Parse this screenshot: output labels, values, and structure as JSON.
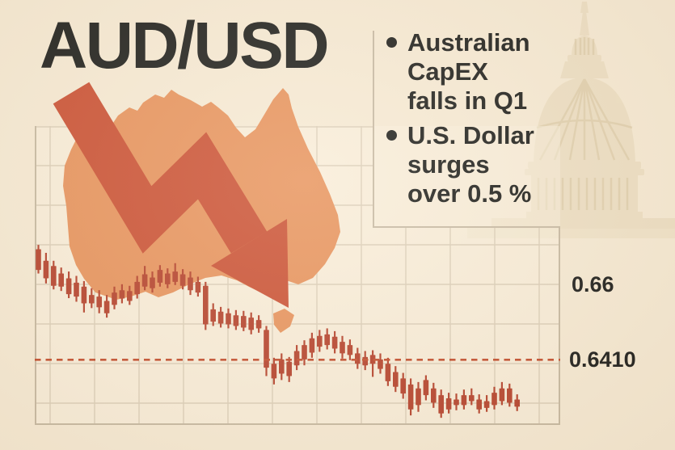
{
  "title": "AUD/USD",
  "bullets": [
    {
      "text": "Australian CapEX falls in Q1"
    },
    {
      "text": "U.S. Dollar surges over 0.5 %"
    }
  ],
  "icons": {
    "map": "australia-map",
    "arrow": "downtrend-arrow",
    "watermark": "us-capitol-dome"
  },
  "colors": {
    "background": "#f7ead3",
    "text": "#23231f",
    "map_orange": "#e8955e",
    "arrow_red": "#cc5436",
    "candle_red": "#b7452e",
    "dashed_line": "#c4502f",
    "grid_line": "#ddcfb8",
    "frame_line": "#c8baa2",
    "panel_border": "#c9bba4",
    "watermark_beige": "#e7d6b4"
  },
  "chart_data": {
    "type": "candlestick",
    "title": "AUD/USD exchange rate",
    "xlabel": "",
    "ylabel": "",
    "grid": true,
    "legend": false,
    "ylim": [
      0.6246,
      0.6998
    ],
    "price_labels": [
      {
        "text": "0.66",
        "value": 0.66
      },
      {
        "text": "0.6410",
        "value": 0.641
      }
    ],
    "reference_line": {
      "value": 0.641,
      "style": "dashed"
    },
    "candle_format": [
      "high",
      "body_top",
      "body_bottom",
      "low"
    ],
    "candles": [
      [
        0.6699,
        0.6688,
        0.6636,
        0.6627
      ],
      [
        0.6679,
        0.6659,
        0.6615,
        0.6602
      ],
      [
        0.6659,
        0.6646,
        0.6596,
        0.6587
      ],
      [
        0.6642,
        0.6627,
        0.6594,
        0.6583
      ],
      [
        0.6632,
        0.6615,
        0.6575,
        0.6565
      ],
      [
        0.6621,
        0.6604,
        0.6569,
        0.6556
      ],
      [
        0.6608,
        0.6594,
        0.6552,
        0.6529
      ],
      [
        0.659,
        0.6573,
        0.6552,
        0.654
      ],
      [
        0.6585,
        0.6569,
        0.6542,
        0.6527
      ],
      [
        0.6573,
        0.6558,
        0.6527,
        0.6516
      ],
      [
        0.6594,
        0.6579,
        0.6548,
        0.6537
      ],
      [
        0.66,
        0.6585,
        0.6564,
        0.6552
      ],
      [
        0.6596,
        0.6583,
        0.6558,
        0.6548
      ],
      [
        0.6621,
        0.6606,
        0.6575,
        0.6564
      ],
      [
        0.6646,
        0.6625,
        0.6594,
        0.6585
      ],
      [
        0.6632,
        0.6617,
        0.659,
        0.6579
      ],
      [
        0.6648,
        0.6636,
        0.6604,
        0.6594
      ],
      [
        0.664,
        0.6627,
        0.66,
        0.659
      ],
      [
        0.6653,
        0.6632,
        0.6606,
        0.6598
      ],
      [
        0.6638,
        0.6625,
        0.6596,
        0.6587
      ],
      [
        0.6632,
        0.6617,
        0.6585,
        0.6573
      ],
      [
        0.6619,
        0.6606,
        0.6579,
        0.6569
      ],
      [
        0.6606,
        0.6596,
        0.6499,
        0.6485
      ],
      [
        0.6552,
        0.6537,
        0.6506,
        0.6495
      ],
      [
        0.6543,
        0.6531,
        0.6501,
        0.6491
      ],
      [
        0.6539,
        0.6527,
        0.6499,
        0.6489
      ],
      [
        0.6535,
        0.6522,
        0.6495,
        0.6485
      ],
      [
        0.6533,
        0.652,
        0.6491,
        0.6482
      ],
      [
        0.6529,
        0.6516,
        0.6485,
        0.6474
      ],
      [
        0.6522,
        0.651,
        0.6489,
        0.6478
      ],
      [
        0.6495,
        0.6485,
        0.639,
        0.6369
      ],
      [
        0.6415,
        0.64,
        0.6363,
        0.6348
      ],
      [
        0.6426,
        0.6411,
        0.6375,
        0.6359
      ],
      [
        0.6417,
        0.6405,
        0.6369,
        0.6354
      ],
      [
        0.6447,
        0.6432,
        0.6396,
        0.6384
      ],
      [
        0.6459,
        0.6447,
        0.6411,
        0.6396
      ],
      [
        0.6478,
        0.6464,
        0.6428,
        0.6415
      ],
      [
        0.6485,
        0.647,
        0.6443,
        0.643
      ],
      [
        0.6489,
        0.6474,
        0.6447,
        0.6436
      ],
      [
        0.6482,
        0.6468,
        0.6438,
        0.6426
      ],
      [
        0.647,
        0.6455,
        0.6426,
        0.6413
      ],
      [
        0.6461,
        0.6447,
        0.6422,
        0.6409
      ],
      [
        0.644,
        0.6426,
        0.64,
        0.6387
      ],
      [
        0.6432,
        0.6417,
        0.6396,
        0.6384
      ],
      [
        0.6434,
        0.6422,
        0.64,
        0.6367
      ],
      [
        0.6426,
        0.6411,
        0.6387,
        0.6375
      ],
      [
        0.6415,
        0.64,
        0.6356,
        0.6344
      ],
      [
        0.6394,
        0.6379,
        0.6342,
        0.6329
      ],
      [
        0.6377,
        0.6363,
        0.6325,
        0.6312
      ],
      [
        0.6363,
        0.6348,
        0.6285,
        0.627
      ],
      [
        0.6354,
        0.6338,
        0.6296,
        0.6279
      ],
      [
        0.6371,
        0.6359,
        0.6321,
        0.6308
      ],
      [
        0.6352,
        0.6338,
        0.6302,
        0.6289
      ],
      [
        0.6335,
        0.6321,
        0.6275,
        0.6264
      ],
      [
        0.6327,
        0.6313,
        0.6285,
        0.6275
      ],
      [
        0.6325,
        0.631,
        0.6296,
        0.6283
      ],
      [
        0.6335,
        0.6321,
        0.6296,
        0.6285
      ],
      [
        0.6338,
        0.6321,
        0.6306,
        0.6296
      ],
      [
        0.6323,
        0.631,
        0.6285,
        0.6275
      ],
      [
        0.6321,
        0.6306,
        0.6289,
        0.6279
      ],
      [
        0.6342,
        0.6327,
        0.6296,
        0.6285
      ],
      [
        0.6354,
        0.6338,
        0.6306,
        0.6296
      ],
      [
        0.635,
        0.6338,
        0.6302,
        0.6292
      ],
      [
        0.6323,
        0.631,
        0.6292,
        0.6281
      ]
    ]
  }
}
